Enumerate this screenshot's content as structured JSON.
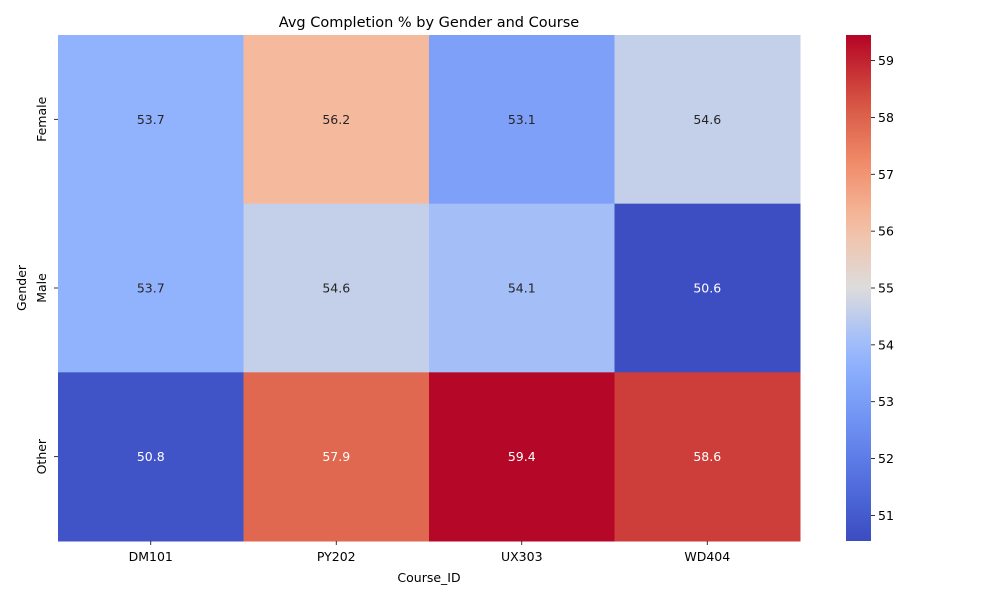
{
  "chart_data": {
    "type": "heatmap",
    "title": "Avg Completion % by Gender and Course",
    "xlabel": "Course_ID",
    "ylabel": "Gender",
    "x_categories": [
      "DM101",
      "PY202",
      "UX303",
      "WD404"
    ],
    "y_categories": [
      "Female",
      "Male",
      "Other"
    ],
    "values": [
      [
        53.7,
        56.2,
        53.1,
        54.6
      ],
      [
        53.7,
        54.6,
        54.1,
        50.6
      ],
      [
        50.8,
        57.9,
        59.4,
        58.6
      ]
    ],
    "value_labels": [
      [
        "53.7",
        "56.2",
        "53.1",
        "54.6"
      ],
      [
        "53.7",
        "54.6",
        "54.1",
        "50.6"
      ],
      [
        "50.8",
        "57.9",
        "59.4",
        "58.6"
      ]
    ],
    "colormap": "coolwarm",
    "colorbar": {
      "vmin": 50.55,
      "vmax": 59.45,
      "ticks": [
        51,
        52,
        53,
        54,
        55,
        56,
        57,
        58,
        59
      ],
      "tick_labels": [
        "51",
        "52",
        "53",
        "54",
        "55",
        "56",
        "57",
        "58",
        "59"
      ]
    },
    "grid": false,
    "legend": "colorbar-right"
  }
}
